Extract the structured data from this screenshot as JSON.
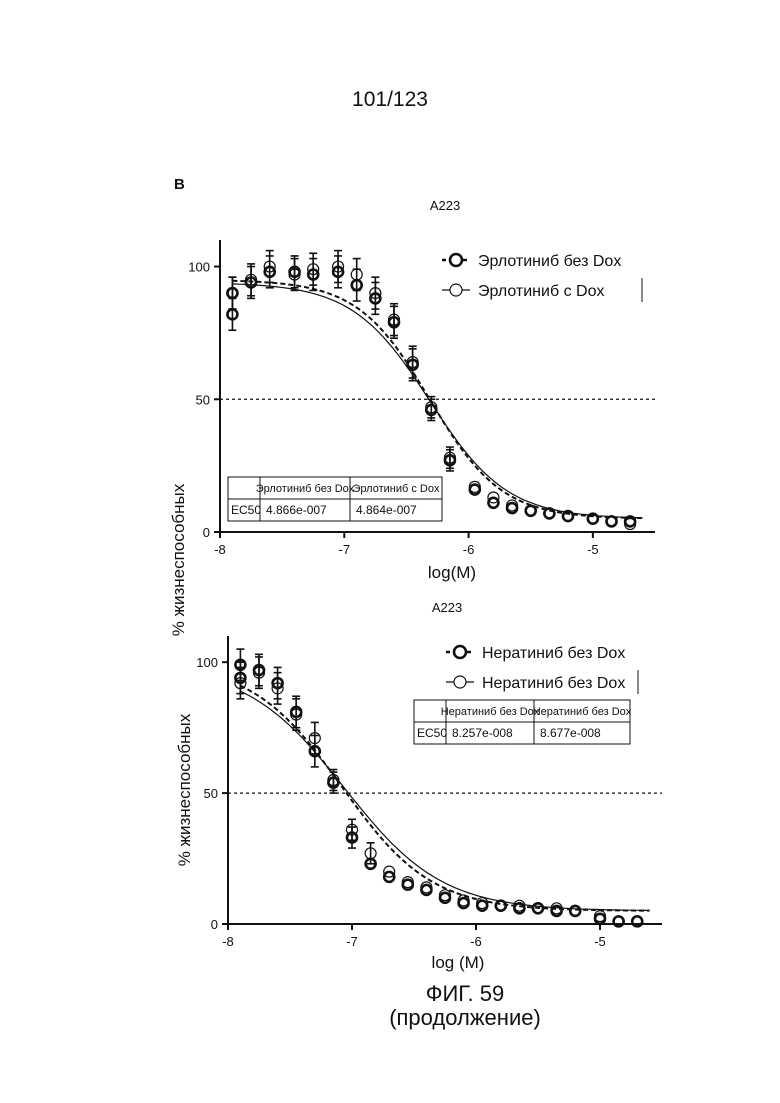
{
  "page_number": "101/123",
  "panel_label": "B",
  "figure": {
    "title": "ФИГ. 59",
    "subtitle": "(продолжение)"
  },
  "chart_data": [
    {
      "type": "scatter",
      "title": "A223",
      "xlabel": "log(M)",
      "ylabel": "% жизнеспособных",
      "xlim": [
        -8.0,
        -4.5
      ],
      "ylim": [
        0,
        110
      ],
      "xticks": [
        -8,
        -7,
        -6,
        -5
      ],
      "xtick_labels": [
        "-8",
        "-7",
        "-6",
        "-5"
      ],
      "yticks": [
        0,
        50,
        100
      ],
      "ytick_labels": [
        "0",
        "50",
        "100"
      ],
      "reference_line_y": 50,
      "legend_position": "top-right",
      "series": [
        {
          "name": "Эрлотиниб без Dox",
          "marker": "bold-circle",
          "line": "dashed",
          "x": [
            -7.9,
            -7.9,
            -7.75,
            -7.6,
            -7.4,
            -7.25,
            -7.05,
            -6.9,
            -6.75,
            -6.6,
            -6.45,
            -6.3,
            -6.15,
            -5.95,
            -5.8,
            -5.65,
            -5.5,
            -5.35,
            -5.2,
            -5.0,
            -4.85,
            -4.7
          ],
          "y": [
            90,
            82,
            94,
            98,
            98,
            97,
            98,
            93,
            88,
            79,
            63,
            46,
            27,
            16,
            11,
            9,
            8,
            7,
            6,
            5,
            4,
            4
          ],
          "fit": {
            "top": 95,
            "bottom": 5,
            "logEC50": -6.313,
            "hill": -1.5
          }
        },
        {
          "name": "Эрлотиниб с Dox",
          "marker": "open-circle",
          "line": "solid",
          "x": [
            -7.9,
            -7.75,
            -7.6,
            -7.4,
            -7.25,
            -7.05,
            -6.9,
            -6.75,
            -6.6,
            -6.45,
            -6.3,
            -6.15,
            -5.95,
            -5.8,
            -5.65,
            -5.5,
            -5.35,
            -5.2,
            -5.0,
            -4.85,
            -4.7
          ],
          "y": [
            90,
            95,
            100,
            97,
            99,
            100,
            97,
            90,
            80,
            64,
            47,
            28,
            17,
            13,
            10,
            8,
            7,
            6,
            5,
            4,
            3
          ],
          "fit": {
            "top": 94,
            "bottom": 5,
            "logEC50": -6.313,
            "hill": -1.4
          }
        }
      ],
      "ec50_table": {
        "headers": [
          "",
          "Эрлотиниб без Dox",
          "Эрлотиниб с Dox"
        ],
        "rows": [
          [
            "EC50",
            "4.866e-007",
            "4.864e-007"
          ]
        ]
      }
    },
    {
      "type": "scatter",
      "title": "A223",
      "xlabel": "log (M)",
      "ylabel": "% жизнеспособных",
      "xlim": [
        -8.0,
        -4.5
      ],
      "ylim": [
        0,
        110
      ],
      "xticks": [
        -8,
        -7,
        -6,
        -5
      ],
      "xtick_labels": [
        "-8",
        "-7",
        "-6",
        "-5"
      ],
      "yticks": [
        0,
        50,
        100
      ],
      "ytick_labels": [
        "0",
        "50",
        "100"
      ],
      "reference_line_y": 50,
      "legend_position": "top-right",
      "series": [
        {
          "name": "Нератиниб без Dox",
          "marker": "bold-circle",
          "line": "dashed",
          "x": [
            -7.9,
            -7.9,
            -7.75,
            -7.6,
            -7.45,
            -7.3,
            -7.15,
            -7.0,
            -6.85,
            -6.7,
            -6.55,
            -6.4,
            -6.25,
            -6.1,
            -5.95,
            -5.8,
            -5.65,
            -5.5,
            -5.35,
            -5.2,
            -5.0,
            -4.85,
            -4.7
          ],
          "y": [
            99,
            94,
            97,
            92,
            81,
            66,
            54,
            33,
            23,
            18,
            15,
            13,
            10,
            8,
            7,
            7,
            6,
            6,
            5,
            5,
            2,
            1,
            1
          ],
          "fit": {
            "top": 100,
            "bottom": 5,
            "logEC50": -7.083,
            "hill": -1.2
          }
        },
        {
          "name": "Нератиниб без Dox",
          "marker": "open-circle",
          "line": "solid",
          "x": [
            -7.9,
            -7.75,
            -7.6,
            -7.45,
            -7.3,
            -7.15,
            -7.0,
            -6.85,
            -6.7,
            -6.55,
            -6.4,
            -6.25,
            -6.1,
            -5.95,
            -5.8,
            -5.65,
            -5.5,
            -5.35,
            -5.2,
            -5.0,
            -4.85,
            -4.7
          ],
          "y": [
            92,
            96,
            90,
            80,
            71,
            55,
            36,
            27,
            20,
            16,
            14,
            11,
            9,
            8,
            7,
            7,
            6,
            6,
            5,
            3,
            1,
            1
          ],
          "fit": {
            "top": 99,
            "bottom": 5,
            "logEC50": -7.062,
            "hill": -1.1
          }
        }
      ],
      "ec50_table": {
        "headers": [
          "",
          "Нератиниб без Dox",
          "Нератиниб без Dox"
        ],
        "rows": [
          [
            "EC50",
            "8.257e-008",
            "8.677e-008"
          ]
        ]
      }
    }
  ]
}
